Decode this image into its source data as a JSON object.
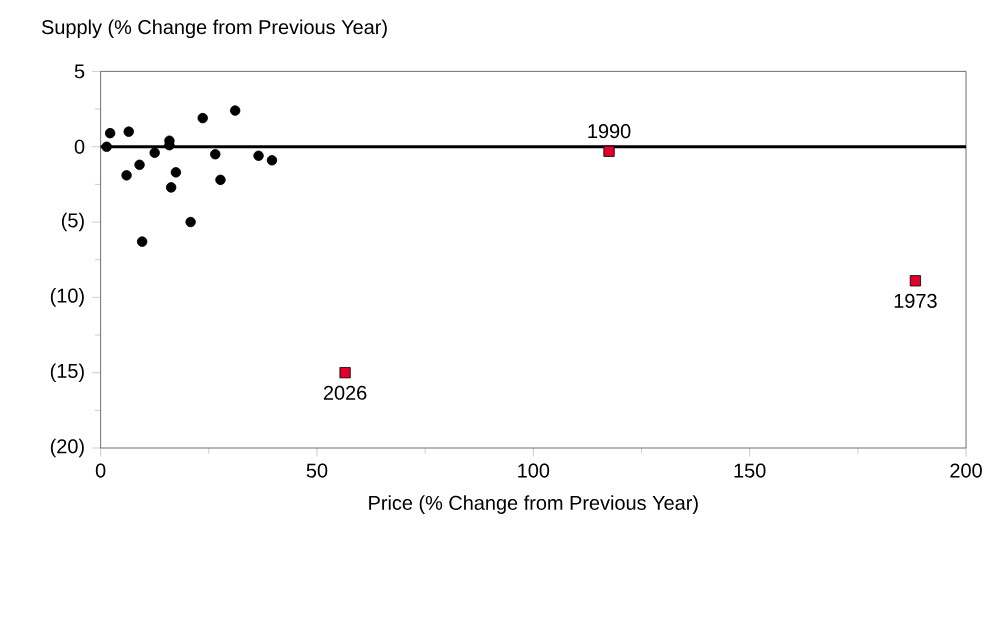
{
  "chart_data": {
    "type": "scatter",
    "ylabel": "Supply (% Change from Previous Year)",
    "xlabel": "Price (% Change from Previous Year)",
    "series": [
      {
        "color": "#000000",
        "marker": "circle",
        "x": [
          1.4,
          2.2,
          6.5,
          6.0,
          9.0,
          9.6,
          12.5,
          15.9,
          15.9,
          16.3,
          17.4,
          20.8,
          23.6,
          26.5,
          27.7,
          31.1,
          36.5,
          39.6
        ],
        "values": [
          0.0,
          0.9,
          1.0,
          -1.9,
          -1.2,
          -6.3,
          -0.4,
          0.4,
          0.1,
          -2.7,
          -1.7,
          -5.0,
          1.9,
          -0.5,
          -2.2,
          2.4,
          -0.6,
          -0.9
        ]
      },
      {
        "color": "#e0002a",
        "marker": "square",
        "x": [
          117.5,
          56.5,
          188.3
        ],
        "values": [
          -0.3,
          -15.0,
          -8.9
        ]
      }
    ],
    "annotations": [
      {
        "text": "1990",
        "x": 117.5,
        "y": -0.3
      },
      {
        "text": "2026",
        "x": 56.5,
        "y": -15.0
      },
      {
        "text": "1973",
        "x": 188.3,
        "y": -8.9
      }
    ],
    "ref_lines": [
      {
        "axis": "y",
        "value": 0,
        "color": "#000000",
        "line_style": "solid"
      }
    ],
    "xlim": [
      0,
      200
    ],
    "xticks": [
      0,
      50,
      100,
      150,
      200
    ],
    "ylim": [
      -20,
      5
    ],
    "yticks": [
      {
        "value": -20,
        "label": "(20)"
      },
      {
        "value": -15,
        "label": "(15)"
      },
      {
        "value": -10,
        "label": "(10)"
      },
      {
        "value": -5,
        "label": "(5)"
      },
      0,
      5
    ],
    "grid": false
  }
}
